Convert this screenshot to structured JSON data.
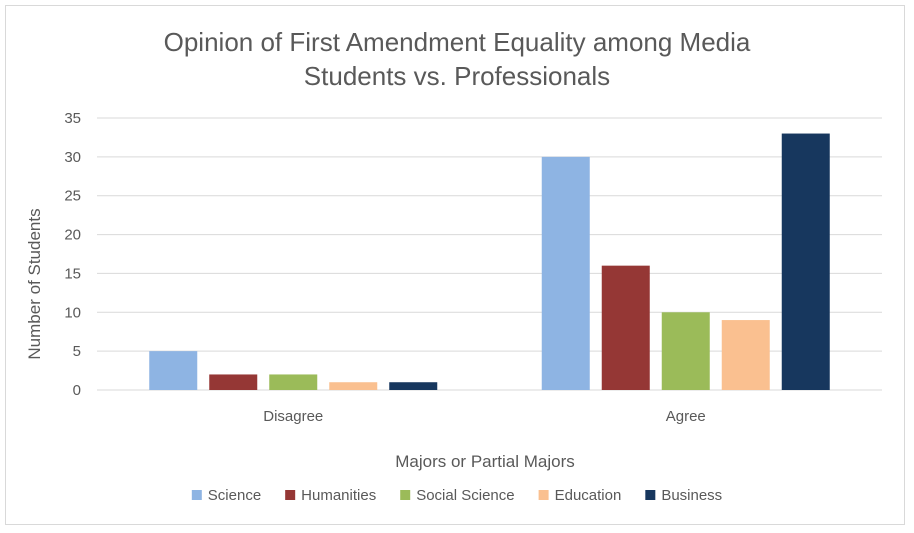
{
  "chart_data": {
    "type": "bar",
    "title_lines": [
      "Opinion of First Amendment Equality among Media",
      "Students vs. Professionals"
    ],
    "xlabel": "Majors or Partial Majors",
    "ylabel": "Number of Students",
    "categories": [
      "Disagree",
      "Agree"
    ],
    "ylim": [
      0,
      35
    ],
    "yticks": [
      0,
      5,
      10,
      15,
      20,
      25,
      30,
      35
    ],
    "grid": true,
    "legend_position": "bottom",
    "series": [
      {
        "name": "Science",
        "color": "#8eb4e3",
        "values": [
          5,
          30
        ]
      },
      {
        "name": "Humanities",
        "color": "#953735",
        "values": [
          2,
          16
        ]
      },
      {
        "name": "Social Science",
        "color": "#9bbb59",
        "values": [
          2,
          10
        ]
      },
      {
        "name": "Education",
        "color": "#fac090",
        "values": [
          1,
          9
        ]
      },
      {
        "name": "Business",
        "color": "#17375e",
        "values": [
          1,
          33
        ]
      }
    ]
  }
}
